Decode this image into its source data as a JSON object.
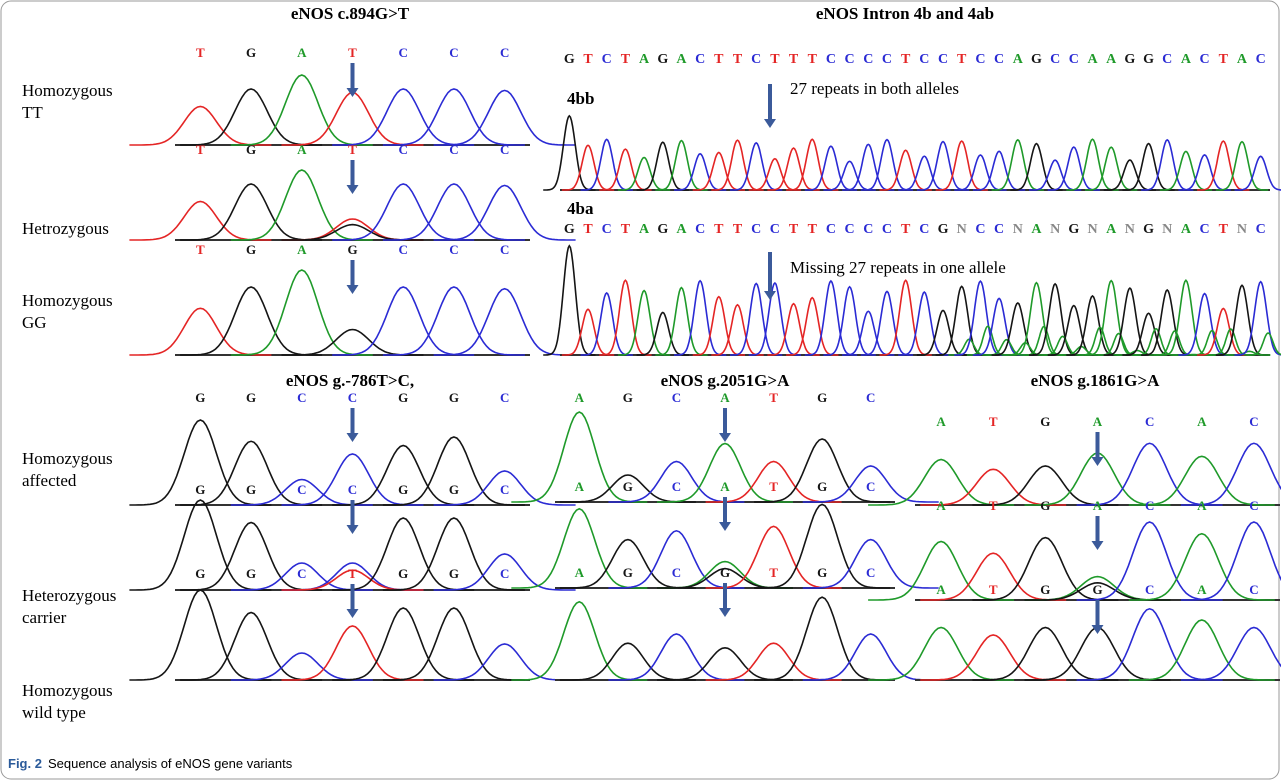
{
  "panels": [
    {
      "title": "eNOS c.894G>T",
      "traces": [
        {
          "bases": [
            "T",
            "G",
            "A",
            "T",
            "C",
            "C",
            "C"
          ]
        },
        {
          "bases": [
            "T",
            "G",
            "A",
            "T",
            "C",
            "C",
            "C"
          ]
        },
        {
          "bases": [
            "T",
            "G",
            "A",
            "G",
            "C",
            "C",
            "C"
          ]
        }
      ]
    },
    {
      "title": "eNOS g.-786T>C,",
      "traces": [
        {
          "bases": [
            "G",
            "G",
            "C",
            "C",
            "G",
            "G",
            "C"
          ]
        },
        {
          "bases": [
            "G",
            "G",
            "C",
            "C",
            "G",
            "G",
            "C"
          ]
        },
        {
          "bases": [
            "G",
            "G",
            "C",
            "T",
            "G",
            "G",
            "C"
          ]
        }
      ]
    },
    {
      "title": "eNOS g.2051G>A",
      "traces": [
        {
          "bases": [
            "A",
            "G",
            "C",
            "A",
            "T",
            "G",
            "C"
          ]
        },
        {
          "bases": [
            "A",
            "G",
            "C",
            "A",
            "T",
            "G",
            "C"
          ]
        },
        {
          "bases": [
            "A",
            "G",
            "C",
            "G",
            "T",
            "G",
            "C"
          ]
        }
      ]
    },
    {
      "title": "eNOS g.1861G>A",
      "traces": [
        {
          "bases": [
            "A",
            "T",
            "G",
            "A",
            "C",
            "A",
            "C"
          ]
        },
        {
          "bases": [
            "A",
            "T",
            "G",
            "A",
            "C",
            "A",
            "C"
          ]
        },
        {
          "bases": [
            "A",
            "T",
            "G",
            "G",
            "C",
            "A",
            "C"
          ]
        }
      ]
    }
  ],
  "intron": {
    "title": "eNOS Intron 4b and 4ab",
    "tracks": [
      {
        "label": "4bb",
        "note": "27 repeats in both alleles",
        "bases": [
          "G",
          "T",
          "C",
          "T",
          "A",
          "G",
          "A",
          "C",
          "T",
          "T",
          "C",
          "T",
          "T",
          "T",
          "C",
          "C",
          "C",
          "C",
          "T",
          "C",
          "C",
          "T",
          "C",
          "C",
          "A",
          "G",
          "C",
          "C",
          "A",
          "A",
          "G",
          "G",
          "C",
          "A",
          "C",
          "T",
          "A",
          "C"
        ]
      },
      {
        "label": "4ba",
        "note": "Missing 27 repeats in one allele",
        "bases": [
          "G",
          "T",
          "C",
          "T",
          "A",
          "G",
          "A",
          "C",
          "T",
          "T",
          "C",
          "C",
          "T",
          "T",
          "C",
          "C",
          "C",
          "C",
          "T",
          "C",
          "G",
          "N",
          "C",
          "C",
          "N",
          "A",
          "N",
          "G",
          "N",
          "A",
          "N",
          "G",
          "N",
          "A",
          "C",
          "T",
          "N",
          "C"
        ]
      }
    ]
  },
  "row_labels": [
    [
      "Homozygous",
      "TT"
    ],
    [
      "Hetrozygous"
    ],
    [
      "Homozygous",
      "GG"
    ],
    [
      "Homozygous",
      "affected"
    ],
    [
      "Heterozygous",
      "carrier"
    ],
    [
      "Homozygous",
      "wild type"
    ]
  ],
  "caption": {
    "label": "Fig. 2",
    "text": "Sequence analysis of eNOS gene variants"
  }
}
